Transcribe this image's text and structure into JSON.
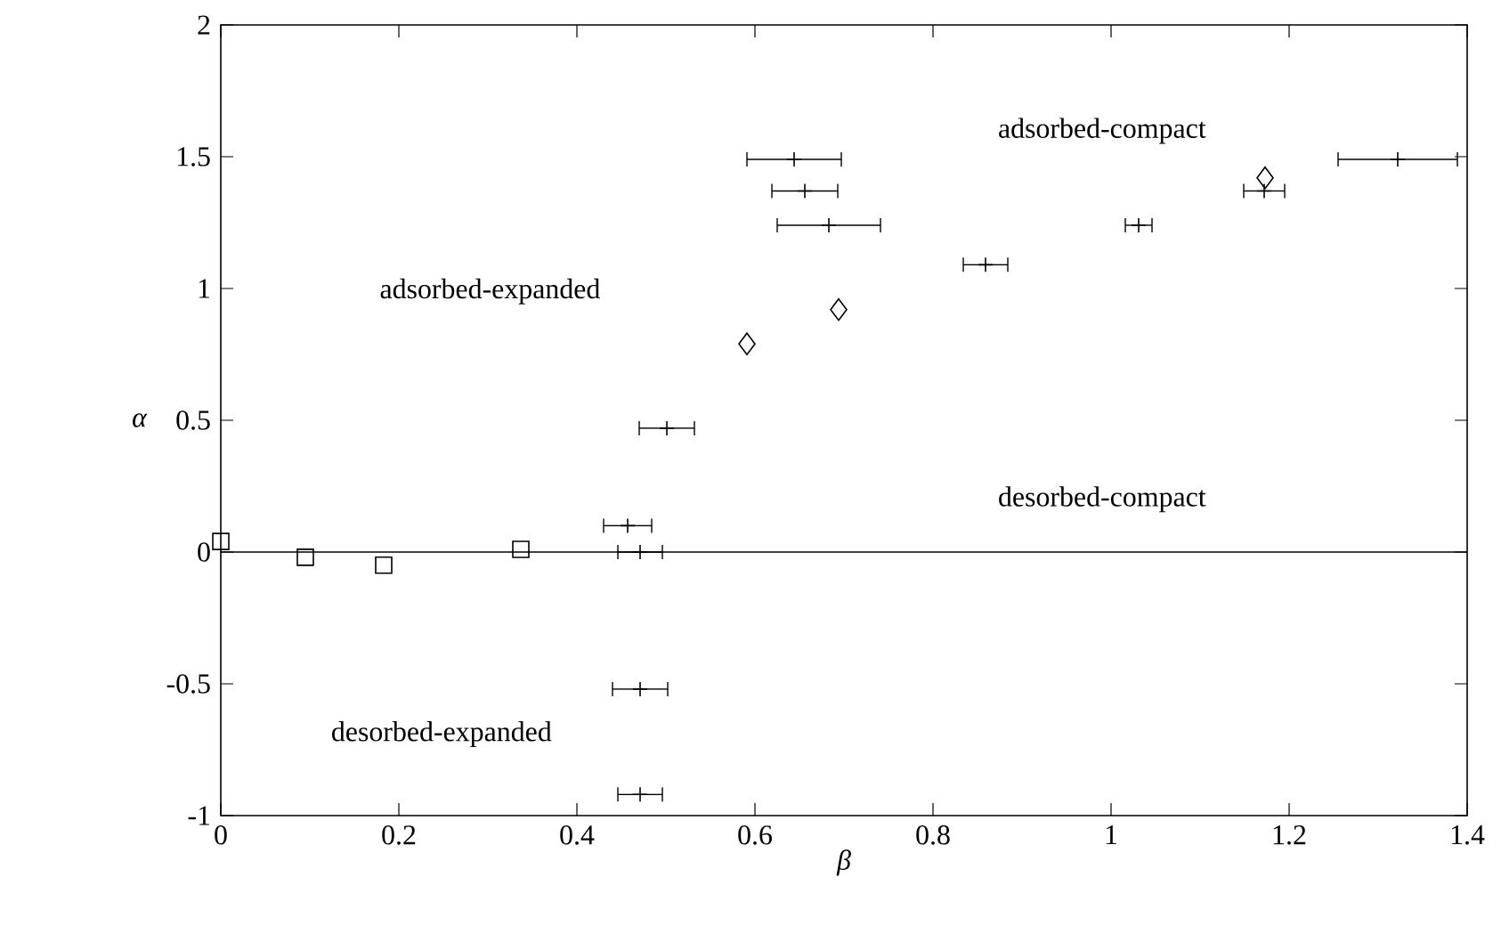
{
  "chart_data": {
    "type": "scatter",
    "xlabel": "β",
    "ylabel": "α",
    "xlim": [
      0,
      1.4
    ],
    "ylim": [
      -1,
      2
    ],
    "xticks": [
      0,
      0.2,
      0.4,
      0.6,
      0.8,
      1,
      1.2,
      1.4
    ],
    "yticks": [
      -1,
      -0.5,
      0,
      0.5,
      1,
      1.5,
      2
    ],
    "annotations": [
      "adsorbed-expanded",
      "adsorbed-compact",
      "desorbed-compact",
      "desorbed-expanded"
    ],
    "ref_lines": [
      {
        "axis": "y",
        "value": 0,
        "color": "#000000"
      }
    ],
    "series": [
      {
        "color": "#000000",
        "marker": "cross",
        "x": [
          0.644,
          0.656,
          0.683,
          0.501,
          0.457,
          0.471,
          0.471,
          0.471,
          0.859,
          1.031,
          1.172,
          1.322
        ],
        "values": [
          1.49,
          1.37,
          1.24,
          0.47,
          0.1,
          0,
          -0.52,
          -0.92,
          1.09,
          1.24,
          1.37,
          1.49
        ],
        "xerrors": [
          0.053,
          0.037,
          0.058,
          0.031,
          0.027,
          0.025,
          0.031,
          0.025,
          0.025,
          0.015,
          0.023,
          0.067
        ]
      },
      {
        "color": "#000000",
        "marker": "square",
        "x": [
          0,
          0.095,
          0.183,
          0.337
        ],
        "values": [
          0.04,
          -0.02,
          -0.05,
          0.01
        ]
      },
      {
        "color": "#000000",
        "marker": "diamond",
        "x": [
          0.591,
          0.694,
          1.173
        ],
        "values": [
          0.79,
          0.92,
          1.42
        ]
      }
    ]
  }
}
